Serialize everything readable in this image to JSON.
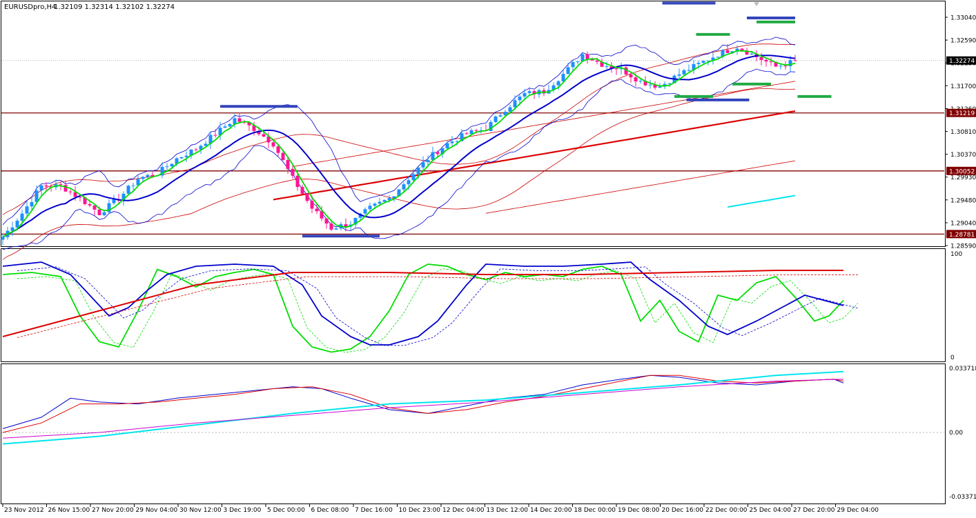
{
  "header": {
    "symbol": "EURUSDpro,H4",
    "ohlc": "1.32109 1.32314 1.32102 1.32274"
  },
  "colors": {
    "bull": "#1e90ff",
    "bear": "#ff1493",
    "ma_fast": "#00dd00",
    "ma_slow": "#0000cc",
    "band_outer": "#0000cc",
    "envelope": "#cc0000",
    "ma_long": "#dd0000",
    "cyan": "#00e5ee",
    "magenta": "#cc00cc",
    "level_line": "#800000",
    "level_box": "#800000",
    "marker_blue": "#3344bb",
    "marker_green": "#22aa44"
  },
  "chart_data": [
    {
      "type": "candlestick",
      "pane": "price",
      "title": "EURUSDpro,H4",
      "ylim": [
        1.2855,
        1.3345
      ],
      "y_ticks": [
        "1.33040",
        "1.32590",
        "1.32150",
        "1.31700",
        "1.31260",
        "1.30810",
        "1.30370",
        "1.29930",
        "1.29480",
        "1.29040",
        "1.28590"
      ],
      "price_label": "1.32274",
      "current_price": 1.32274,
      "levels": [
        {
          "value": 1.31219,
          "label": "1.31219"
        },
        {
          "value": 1.30052,
          "label": "1.30052"
        },
        {
          "value": 1.28781,
          "label": "1.28781"
        }
      ],
      "x_labels": [
        "23 Nov 2012",
        "26 Nov 15:00",
        "27 Nov 20:00",
        "29 Nov 04:00",
        "30 Nov 12:00",
        "3 Dec 19:00",
        "5 Dec 00:00",
        "6 Dec 08:00",
        "7 Dec 16:00",
        "10 Dec 23:00",
        "12 Dec 04:00",
        "13 Dec 12:00",
        "14 Dec 20:00",
        "18 Dec 00:00",
        "19 Dec 08:00",
        "20 Dec 16:00",
        "22 Dec 00:00",
        "25 Dec 04:00",
        "27 Dec 20:00",
        "29 Dec 04:00"
      ],
      "close_path": [
        [
          0,
          1.2872
        ],
        [
          4,
          1.292
        ],
        [
          8,
          1.2975
        ],
        [
          12,
          1.2975
        ],
        [
          16,
          1.295
        ],
        [
          20,
          1.292
        ],
        [
          24,
          1.295
        ],
        [
          28,
          1.299
        ],
        [
          32,
          1.3
        ],
        [
          36,
          1.303
        ],
        [
          40,
          1.305
        ],
        [
          44,
          1.308
        ],
        [
          48,
          1.311
        ],
        [
          52,
          1.309
        ],
        [
          56,
          1.306
        ],
        [
          60,
          1.299
        ],
        [
          64,
          1.293
        ],
        [
          68,
          1.289
        ],
        [
          72,
          1.29
        ],
        [
          76,
          1.293
        ],
        [
          80,
          1.295
        ],
        [
          84,
          1.299
        ],
        [
          88,
          1.303
        ],
        [
          92,
          1.306
        ],
        [
          96,
          1.308
        ],
        [
          100,
          1.309
        ],
        [
          104,
          1.313
        ],
        [
          108,
          1.316
        ],
        [
          112,
          1.3165
        ],
        [
          116,
          1.32
        ],
        [
          120,
          1.324
        ],
        [
          124,
          1.322
        ],
        [
          128,
          1.321
        ],
        [
          132,
          1.3185
        ],
        [
          136,
          1.3175
        ],
        [
          140,
          1.32
        ],
        [
          144,
          1.322
        ],
        [
          148,
          1.324
        ],
        [
          152,
          1.3255
        ],
        [
          156,
          1.3235
        ],
        [
          160,
          1.3215
        ],
        [
          164,
          1.3226
        ]
      ],
      "markers": [
        {
          "color": "blue",
          "index": 142,
          "value": 1.3343,
          "length": 11
        },
        {
          "color": "blue",
          "index": 53,
          "value": 1.3135,
          "length": 16
        },
        {
          "color": "blue",
          "index": 70,
          "value": 1.2874,
          "length": 16
        },
        {
          "color": "blue",
          "index": 148,
          "value": 1.3148,
          "length": 13
        },
        {
          "color": "blue",
          "index": 159,
          "value": 1.3313,
          "length": 10
        },
        {
          "color": "green",
          "index": 147,
          "value": 1.328,
          "length": 7
        },
        {
          "color": "green",
          "index": 143,
          "value": 1.3155,
          "length": 8
        },
        {
          "color": "green",
          "index": 155,
          "value": 1.318,
          "length": 8
        },
        {
          "color": "green",
          "index": 160,
          "value": 1.3305,
          "length": 8
        },
        {
          "color": "green",
          "index": 168,
          "value": 1.3155,
          "length": 7
        }
      ]
    },
    {
      "type": "line",
      "pane": "oscillator",
      "ylim": [
        0,
        100
      ],
      "y_ticks": [
        "100",
        "0"
      ],
      "series": [
        {
          "color": "green",
          "values": [
            [
              0,
              80
            ],
            [
              6,
              82
            ],
            [
              12,
              78
            ],
            [
              16,
              40
            ],
            [
              20,
              15
            ],
            [
              24,
              10
            ],
            [
              28,
              45
            ],
            [
              32,
              85
            ],
            [
              36,
              78
            ],
            [
              40,
              68
            ],
            [
              44,
              78
            ],
            [
              48,
              82
            ],
            [
              52,
              85
            ],
            [
              56,
              80
            ],
            [
              60,
              30
            ],
            [
              64,
              10
            ],
            [
              68,
              5
            ],
            [
              72,
              8
            ],
            [
              76,
              20
            ],
            [
              80,
              45
            ],
            [
              84,
              80
            ],
            [
              88,
              90
            ],
            [
              92,
              88
            ],
            [
              96,
              80
            ],
            [
              100,
              75
            ],
            [
              104,
              82
            ],
            [
              108,
              78
            ],
            [
              112,
              80
            ],
            [
              116,
              78
            ],
            [
              120,
              85
            ],
            [
              124,
              88
            ],
            [
              128,
              80
            ],
            [
              132,
              35
            ],
            [
              136,
              55
            ],
            [
              140,
              25
            ],
            [
              144,
              15
            ],
            [
              148,
              60
            ],
            [
              152,
              55
            ],
            [
              156,
              72
            ],
            [
              160,
              78
            ],
            [
              164,
              58
            ],
            [
              168,
              35
            ],
            [
              171,
              40
            ],
            [
              174,
              55
            ]
          ]
        },
        {
          "color": "blue",
          "values": [
            [
              0,
              88
            ],
            [
              8,
              92
            ],
            [
              14,
              80
            ],
            [
              18,
              60
            ],
            [
              22,
              40
            ],
            [
              26,
              48
            ],
            [
              30,
              65
            ],
            [
              34,
              80
            ],
            [
              40,
              88
            ],
            [
              48,
              90
            ],
            [
              56,
              88
            ],
            [
              62,
              70
            ],
            [
              66,
              40
            ],
            [
              72,
              20
            ],
            [
              76,
              12
            ],
            [
              80,
              12
            ],
            [
              86,
              20
            ],
            [
              90,
              35
            ],
            [
              96,
              70
            ],
            [
              100,
              90
            ],
            [
              108,
              88
            ],
            [
              116,
              88
            ],
            [
              124,
              90
            ],
            [
              130,
              92
            ],
            [
              134,
              75
            ],
            [
              140,
              55
            ],
            [
              146,
              30
            ],
            [
              150,
              22
            ],
            [
              156,
              35
            ],
            [
              162,
              50
            ],
            [
              166,
              60
            ],
            [
              170,
              55
            ],
            [
              174,
              50
            ]
          ]
        },
        {
          "color": "red",
          "values": [
            [
              0,
              20
            ],
            [
              20,
              45
            ],
            [
              40,
              70
            ],
            [
              60,
              82
            ],
            [
              80,
              82
            ],
            [
              100,
              80
            ],
            [
              120,
              80
            ],
            [
              140,
              82
            ],
            [
              160,
              84
            ],
            [
              174,
              84
            ]
          ]
        }
      ]
    },
    {
      "type": "line",
      "pane": "macd",
      "ylim": [
        -0.03371,
        0.03371
      ],
      "y_ticks": [
        "0.033718",
        "0.00",
        "-0.033718"
      ],
      "series": [
        {
          "color": "blue",
          "values": [
            [
              0,
              0.002
            ],
            [
              8,
              0.008
            ],
            [
              14,
              0.018
            ],
            [
              20,
              0.016
            ],
            [
              28,
              0.015
            ],
            [
              36,
              0.018
            ],
            [
              44,
              0.02
            ],
            [
              52,
              0.022
            ],
            [
              60,
              0.024
            ],
            [
              66,
              0.023
            ],
            [
              72,
              0.018
            ],
            [
              80,
              0.012
            ],
            [
              88,
              0.01
            ],
            [
              96,
              0.014
            ],
            [
              104,
              0.018
            ],
            [
              112,
              0.02
            ],
            [
              120,
              0.025
            ],
            [
              128,
              0.028
            ],
            [
              134,
              0.03
            ],
            [
              140,
              0.029
            ],
            [
              148,
              0.026
            ],
            [
              156,
              0.025
            ],
            [
              164,
              0.027
            ],
            [
              172,
              0.028
            ],
            [
              174,
              0.026
            ]
          ]
        },
        {
          "color": "red",
          "values": [
            [
              0,
              0.0
            ],
            [
              8,
              0.005
            ],
            [
              16,
              0.015
            ],
            [
              24,
              0.015
            ],
            [
              32,
              0.016
            ],
            [
              40,
              0.018
            ],
            [
              48,
              0.02
            ],
            [
              56,
              0.023
            ],
            [
              64,
              0.024
            ],
            [
              72,
              0.02
            ],
            [
              80,
              0.013
            ],
            [
              88,
              0.01
            ],
            [
              96,
              0.012
            ],
            [
              104,
              0.016
            ],
            [
              112,
              0.019
            ],
            [
              120,
              0.023
            ],
            [
              128,
              0.027
            ],
            [
              134,
              0.03
            ],
            [
              140,
              0.03
            ],
            [
              148,
              0.027
            ],
            [
              156,
              0.026
            ],
            [
              164,
              0.027
            ],
            [
              172,
              0.028
            ],
            [
              174,
              0.027
            ]
          ]
        },
        {
          "color": "cyan",
          "values": [
            [
              0,
              -0.006
            ],
            [
              20,
              -0.002
            ],
            [
              40,
              0.004
            ],
            [
              60,
              0.01
            ],
            [
              80,
              0.015
            ],
            [
              100,
              0.017
            ],
            [
              120,
              0.021
            ],
            [
              140,
              0.025
            ],
            [
              160,
              0.03
            ],
            [
              174,
              0.032
            ]
          ]
        },
        {
          "color": "magenta",
          "values": [
            [
              0,
              -0.003
            ],
            [
              20,
              0.0
            ],
            [
              40,
              0.005
            ],
            [
              60,
              0.009
            ],
            [
              80,
              0.013
            ],
            [
              100,
              0.016
            ],
            [
              120,
              0.02
            ],
            [
              140,
              0.024
            ],
            [
              160,
              0.027
            ],
            [
              174,
              0.028
            ]
          ]
        }
      ]
    }
  ]
}
